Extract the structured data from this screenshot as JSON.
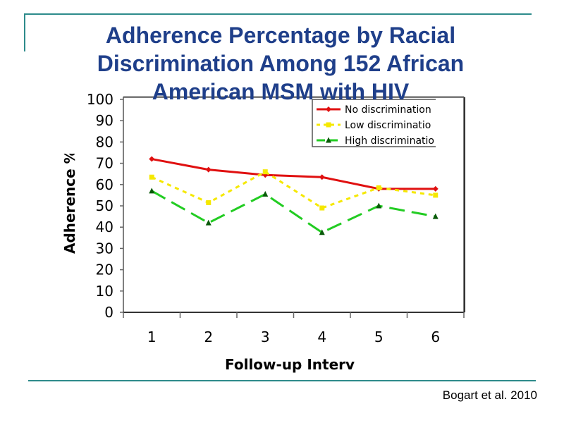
{
  "slide": {
    "title_lines": [
      "Adherence Percentage by Racial",
      "Discrimination Among 152 African",
      "American MSM with HIV"
    ],
    "citation": "Bogart et al. 2010"
  },
  "chart_data": {
    "type": "line",
    "title": "Adherence Percentage by Racial Discrimination Among 152 African American MSM with HIV",
    "xlabel": "Follow-up Interv",
    "ylabel": "Adherence %",
    "categories": [
      "1",
      "2",
      "3",
      "4",
      "5",
      "6"
    ],
    "yticks": [
      "0",
      "10",
      "20",
      "30",
      "40",
      "50",
      "60",
      "70",
      "80",
      "90",
      "100"
    ],
    "ylim": [
      0,
      100
    ],
    "grid": false,
    "legend_position": "top-right",
    "series": [
      {
        "name": "No discrimination",
        "legend_label": "No discrimination",
        "color": "#e01010",
        "dash": "solid",
        "marker": "diamond",
        "values": [
          72,
          67,
          64.5,
          63.5,
          58,
          58
        ]
      },
      {
        "name": "Low discrimination",
        "legend_label": "Low discriminatio",
        "color": "#f5e800",
        "dash": "dotted",
        "marker": "square",
        "values": [
          63.5,
          51.5,
          66,
          49,
          58.5,
          55
        ]
      },
      {
        "name": "High discrimination",
        "legend_label": "High discriminatio",
        "color": "#22cc22",
        "dash": "dashed",
        "marker": "triangle",
        "values": [
          57,
          42,
          55.5,
          37.5,
          50,
          45
        ]
      }
    ]
  }
}
